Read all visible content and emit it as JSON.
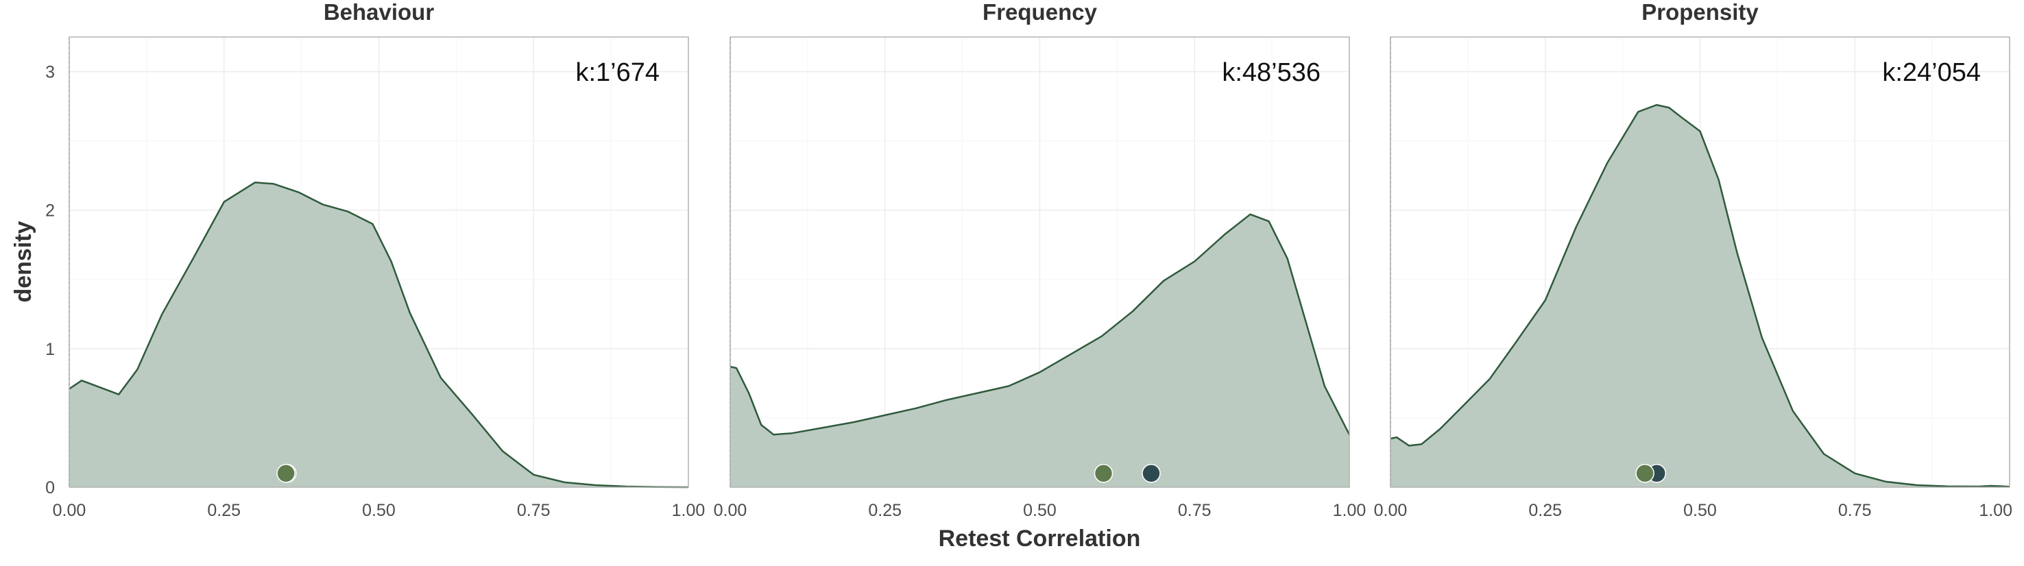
{
  "chart_data": {
    "type": "area",
    "subtype": "density",
    "xlabel": "Retest Correlation",
    "ylabel": "density",
    "xlim": [
      0,
      1
    ],
    "ylim": [
      0,
      3.25
    ],
    "x_ticks": [
      0,
      0.25,
      0.5,
      0.75,
      1
    ],
    "x_tick_labels": [
      "0.00",
      "0.25",
      "0.50",
      "0.75",
      "1.00"
    ],
    "y_ticks": [
      0,
      1,
      2,
      3
    ],
    "y_tick_labels": [
      "0",
      "1",
      "2",
      "3"
    ],
    "grid": true,
    "colors": {
      "fill": "#bccbc1",
      "line": "#2f5a3c",
      "dot_green": "#5f7a4d",
      "dot_dark": "#2d4a50",
      "panel_border": "#b3b3b3"
    },
    "facets": [
      {
        "title": "Behaviour",
        "k_label": "k:1’674",
        "density": {
          "x": [
            0,
            0.02,
            0.05,
            0.08,
            0.11,
            0.15,
            0.2,
            0.25,
            0.3,
            0.33,
            0.37,
            0.41,
            0.45,
            0.49,
            0.52,
            0.55,
            0.6,
            0.65,
            0.7,
            0.75,
            0.8,
            0.85,
            0.9,
            0.95,
            1.0
          ],
          "y": [
            0.71,
            0.77,
            0.72,
            0.67,
            0.85,
            1.25,
            1.65,
            2.06,
            2.2,
            2.19,
            2.13,
            2.04,
            1.99,
            1.9,
            1.63,
            1.26,
            0.79,
            0.53,
            0.26,
            0.09,
            0.035,
            0.015,
            0.005,
            0.001,
            0.0
          ]
        },
        "points": [
          {
            "x": 0.352,
            "color": "dot_dark"
          },
          {
            "x": 0.35,
            "color": "dot_green"
          }
        ]
      },
      {
        "title": "Frequency",
        "k_label": "k:48’536",
        "density": {
          "x": [
            0,
            0.01,
            0.03,
            0.05,
            0.07,
            0.1,
            0.15,
            0.2,
            0.25,
            0.3,
            0.35,
            0.4,
            0.45,
            0.5,
            0.55,
            0.6,
            0.65,
            0.7,
            0.75,
            0.8,
            0.84,
            0.87,
            0.9,
            0.93,
            0.96,
            1.0
          ],
          "y": [
            0.87,
            0.86,
            0.68,
            0.45,
            0.38,
            0.39,
            0.43,
            0.47,
            0.52,
            0.57,
            0.63,
            0.68,
            0.73,
            0.83,
            0.96,
            1.09,
            1.27,
            1.49,
            1.63,
            1.83,
            1.97,
            1.92,
            1.65,
            1.19,
            0.73,
            0.38
          ]
        },
        "points": [
          {
            "x": 0.68,
            "color": "dot_dark"
          },
          {
            "x": 0.603,
            "color": "dot_green"
          }
        ]
      },
      {
        "title": "Propensity",
        "k_label": "k:24’054",
        "density": {
          "x": [
            0,
            0.01,
            0.03,
            0.05,
            0.08,
            0.12,
            0.16,
            0.2,
            0.25,
            0.3,
            0.35,
            0.4,
            0.43,
            0.45,
            0.47,
            0.5,
            0.53,
            0.56,
            0.6,
            0.65,
            0.7,
            0.75,
            0.8,
            0.85,
            0.9,
            0.95,
            0.97,
            1.0
          ],
          "y": [
            0.35,
            0.36,
            0.3,
            0.31,
            0.42,
            0.6,
            0.78,
            1.03,
            1.35,
            1.88,
            2.34,
            2.71,
            2.76,
            2.74,
            2.67,
            2.57,
            2.22,
            1.69,
            1.08,
            0.55,
            0.24,
            0.1,
            0.04,
            0.015,
            0.006,
            0.005,
            0.01,
            0.004
          ]
        },
        "points": [
          {
            "x": 0.43,
            "color": "dot_dark"
          },
          {
            "x": 0.411,
            "color": "dot_green"
          }
        ]
      }
    ]
  }
}
